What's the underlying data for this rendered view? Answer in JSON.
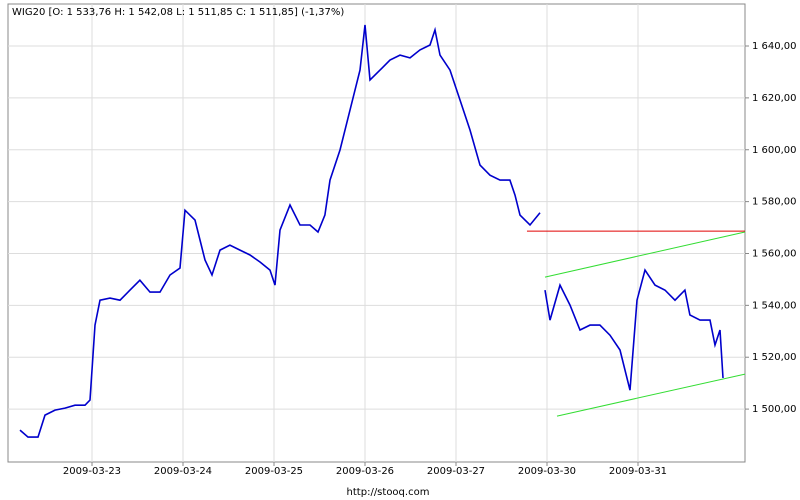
{
  "chart_data": {
    "type": "line",
    "title": "WIG20 [O: 1 533,76  H: 1 542,08  L: 1 511,85  C: 1 511,85] (-1,37%)",
    "footer": "http://stooq.com",
    "x": [
      0.209,
      0.297,
      0.407,
      0.484,
      0.593,
      0.703,
      0.813,
      0.923,
      0.978,
      1.033,
      1.088,
      1.198,
      1.308,
      1.418,
      1.527,
      1.637,
      1.747,
      1.857,
      1.967,
      2.022,
      2.132,
      2.187,
      2.242,
      2.319,
      2.407,
      2.516,
      2.626,
      2.736,
      2.846,
      2.956,
      3.011,
      3.066,
      3.176,
      3.286,
      3.396,
      3.484,
      3.56,
      3.615,
      3.725,
      3.835,
      3.945,
      4.0,
      4.055,
      4.165,
      4.275,
      4.385,
      4.495,
      4.604,
      4.714,
      4.769,
      4.824,
      4.934,
      5.044,
      5.154,
      5.264,
      5.374,
      5.484,
      5.593,
      5.648,
      5.703,
      5.813,
      5.923,
      5.95,
      5.978,
      6.033,
      6.143,
      6.253,
      6.363,
      6.473,
      6.582,
      6.692,
      6.802,
      6.912,
      6.989,
      7.077,
      7.187,
      7.297,
      7.407,
      7.516,
      7.571,
      7.681,
      7.791,
      7.846,
      7.901,
      7.934
    ],
    "series": [
      {
        "name": "WIG20",
        "color": "#0000cc",
        "values": [
          1491.9,
          1489.2,
          1489.2,
          1497.7,
          1499.6,
          1500.4,
          1501.5,
          1501.5,
          1503.5,
          1532.4,
          1542.0,
          1542.8,
          1542.0,
          1545.9,
          1549.7,
          1545.1,
          1545.1,
          1551.7,
          1554.4,
          1576.7,
          1572.9,
          1565.2,
          1557.5,
          1551.7,
          1561.3,
          1563.2,
          1561.3,
          1559.4,
          1556.7,
          1553.6,
          1547.8,
          1569.0,
          1578.7,
          1571.0,
          1571.0,
          1568.3,
          1574.8,
          1588.3,
          1599.9,
          1615.3,
          1630.7,
          1648.1,
          1626.9,
          1630.7,
          1634.6,
          1636.5,
          1635.4,
          1638.5,
          1640.4,
          1646.2,
          1636.5,
          1630.7,
          1619.2,
          1607.6,
          1594.1,
          1590.2,
          1588.3,
          1588.3,
          1582.5,
          1574.8,
          1571.0,
          1575.7,
          null,
          1545.9,
          1534.3,
          1547.8,
          1540.1,
          1530.5,
          1532.4,
          1532.4,
          1528.5,
          1522.8,
          1507.3,
          1542.0,
          1553.6,
          1547.8,
          1545.9,
          1542.0,
          1545.9,
          1536.3,
          1534.3,
          1534.3,
          1524.7,
          1530.5,
          1512.0
        ]
      }
    ],
    "lines": [
      {
        "color": "#e00000",
        "x": [
          5.78,
          8.176
        ],
        "y": [
          1568.6,
          1568.6
        ]
      },
      {
        "color": "#33dd33",
        "x": [
          5.978,
          8.176
        ],
        "y": [
          1550.9,
          1568.3
        ]
      },
      {
        "color": "#33dd33",
        "x": [
          6.11,
          8.176
        ],
        "y": [
          1497.3,
          1513.5
        ]
      }
    ],
    "xlim": [
      0.077,
      8.176
    ],
    "xticks": [
      {
        "value": 1,
        "label": "2009-03-23"
      },
      {
        "value": 2,
        "label": "2009-03-24"
      },
      {
        "value": 3,
        "label": "2009-03-25"
      },
      {
        "value": 4,
        "label": "2009-03-26"
      },
      {
        "value": 5,
        "label": "2009-03-27"
      },
      {
        "value": 6,
        "label": "2009-03-30"
      },
      {
        "value": 7,
        "label": "2009-03-31"
      }
    ],
    "ylim": [
      1479.6,
      1656.2
    ],
    "yticks": [
      {
        "value": 1500,
        "label": "1 500,00"
      },
      {
        "value": 1520,
        "label": "1 520,00"
      },
      {
        "value": 1540,
        "label": "1 540,00"
      },
      {
        "value": 1560,
        "label": "1 560,00"
      },
      {
        "value": 1580,
        "label": "1 580,00"
      },
      {
        "value": 1600,
        "label": "1 600,00"
      },
      {
        "value": 1620,
        "label": "1 620,00"
      },
      {
        "value": 1640,
        "label": "1 640,00"
      }
    ],
    "grid": true
  }
}
